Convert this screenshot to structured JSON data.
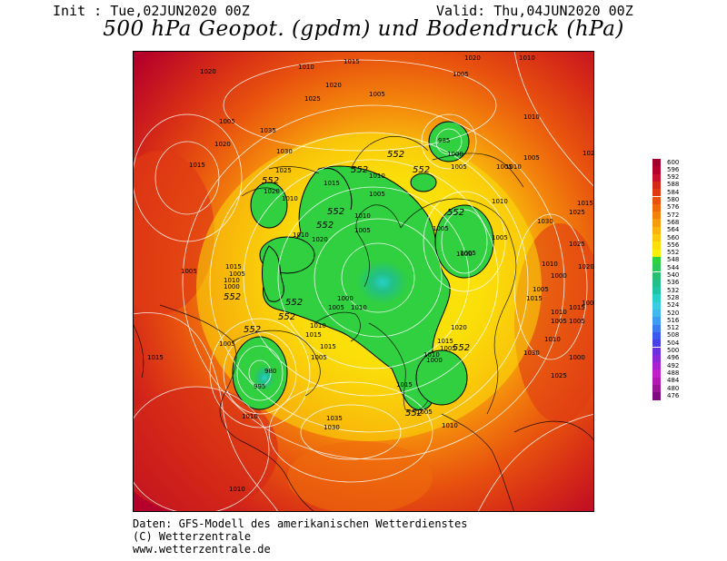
{
  "header": {
    "init": "Init : Tue,02JUN2020 00Z",
    "valid": "Valid: Thu,04JUN2020 00Z",
    "title": "500 hPa Geopot. (gpdm) und Bodendruck (hPa)"
  },
  "footer": {
    "line1": "Daten: GFS-Modell des amerikanischen Wetterdienstes",
    "line2": "(C) Wetterzentrale",
    "line3": "www.wetterzentrale.de"
  },
  "colorbar": {
    "labels": [
      "600",
      "596",
      "592",
      "588",
      "584",
      "580",
      "576",
      "572",
      "568",
      "564",
      "560",
      "556",
      "552",
      "548",
      "544",
      "540",
      "536",
      "532",
      "528",
      "524",
      "520",
      "516",
      "512",
      "508",
      "504",
      "500",
      "496",
      "492",
      "488",
      "484",
      "480",
      "476"
    ],
    "colors": [
      "#a0002a",
      "#b4002a",
      "#c8102a",
      "#d42818",
      "#e03a14",
      "#e8520e",
      "#ef6a0c",
      "#f3820c",
      "#f69c0c",
      "#f8b40c",
      "#fac80c",
      "#fcde0a",
      "#f6f00a",
      "#30d040",
      "#2cc85c",
      "#28c070",
      "#22c088",
      "#1ec4a4",
      "#28d0c8",
      "#3ccce0",
      "#40b8ee",
      "#3c9cf0",
      "#3a7cf0",
      "#3a5aee",
      "#4a40e8",
      "#6a30e0",
      "#8a28d8",
      "#a822d0",
      "#c020c8",
      "#b01ab0",
      "#9a1496",
      "#800a80"
    ]
  },
  "map_labels": {
    "isohypse": [
      "552",
      "552",
      "552",
      "552",
      "552",
      "552",
      "552",
      "552",
      "552",
      "552",
      "552",
      "552",
      "552"
    ],
    "pressure": [
      "1020",
      "1010",
      "1015",
      "1005",
      "1010",
      "1025",
      "1020",
      "1005",
      "1005",
      "1035",
      "1030",
      "1025",
      "1010",
      "1020",
      "1015",
      "1005",
      "1000",
      "1005",
      "1010",
      "1005",
      "1010",
      "1020",
      "1010",
      "1000",
      "1015",
      "1010",
      "1015",
      "1005",
      "1010",
      "1000",
      "1005",
      "1015",
      "1010",
      "1015",
      "1020",
      "1025",
      "1030",
      "1015",
      "1010",
      "1005",
      "1005",
      "1020",
      "1010",
      "1020",
      "1025",
      "1030",
      "1025",
      "1010",
      "1005",
      "1005",
      "1000",
      "1005",
      "1010",
      "985",
      "1000",
      "1010",
      "1005",
      "1005",
      "1015",
      "1020",
      "1015",
      "1005",
      "1010",
      "1000",
      "980",
      "995",
      "1005",
      "1010",
      "1005",
      "1015",
      "1010",
      "1005",
      "1010",
      "1000",
      "1005",
      "1015",
      "1020",
      "1035",
      "1030",
      "1015",
      "1005",
      "1010",
      "1005"
    ]
  }
}
